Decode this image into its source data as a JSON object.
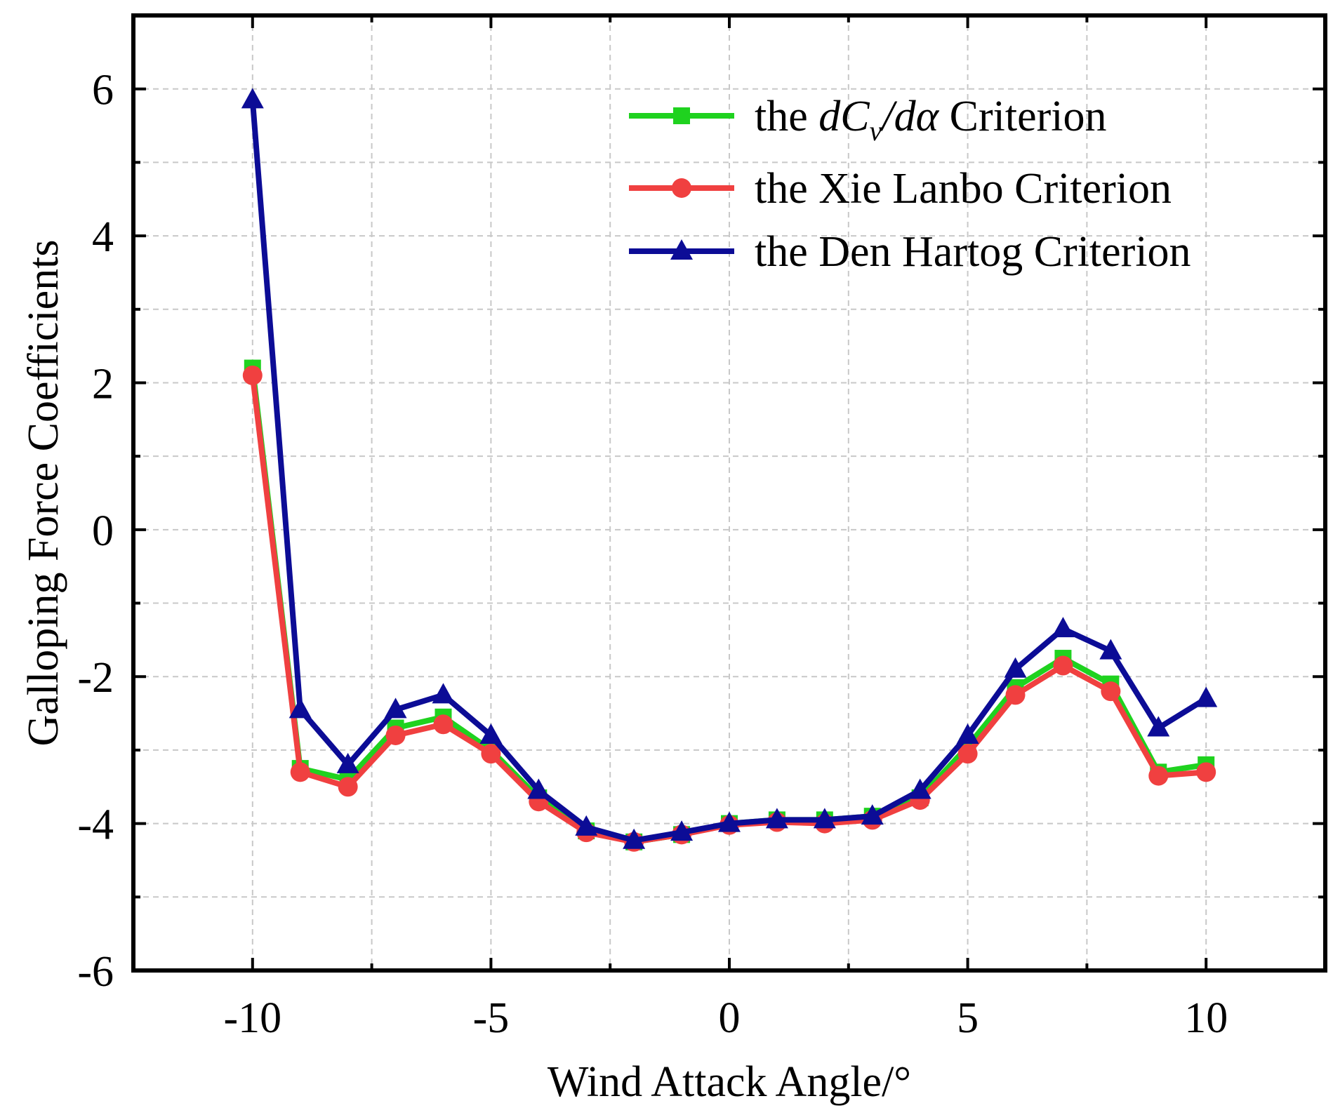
{
  "chart_data": {
    "type": "line",
    "title": "",
    "xlabel": "Wind Attack Angle/°",
    "ylabel": "Galloping Force Coefficients",
    "xlim": [
      -12.5,
      12.5
    ],
    "ylim": [
      -6,
      7
    ],
    "xticks": [
      -10,
      -5,
      0,
      5,
      10
    ],
    "yticks": [
      -6,
      -4,
      -2,
      0,
      2,
      4,
      6
    ],
    "xtick_labels": [
      "-10",
      "-5",
      "0",
      "5",
      "10"
    ],
    "ytick_labels": [
      "-6",
      "-4",
      "-2",
      "0",
      "2",
      "4",
      "6"
    ],
    "grid": true,
    "legend_position": "top-right",
    "x": [
      -10,
      -9,
      -8,
      -7,
      -6,
      -5,
      -4,
      -3,
      -2,
      -1,
      0,
      1,
      2,
      3,
      4,
      5,
      6,
      7,
      8,
      9,
      10
    ],
    "series": [
      {
        "name": "the dCv/dα Criterion",
        "legend_prefix": "the ",
        "legend_math_d1": "d",
        "legend_math_C": "C",
        "legend_math_sub": "v",
        "legend_math_slash": "/",
        "legend_math_d2": "d",
        "legend_math_alpha": "α",
        "legend_suffix": "Criterion",
        "color": "#1fd21f",
        "marker": "square",
        "values": [
          2.2,
          -3.25,
          -3.4,
          -2.7,
          -2.55,
          -3.0,
          -3.65,
          -4.1,
          -4.25,
          -4.15,
          -4.0,
          -3.95,
          -3.95,
          -3.9,
          -3.65,
          -2.95,
          -2.15,
          -1.75,
          -2.1,
          -3.3,
          -3.2
        ]
      },
      {
        "name": "the Xie Lanbo Criterion",
        "legend": "the Xie Lanbo Criterion",
        "color": "#f04040",
        "marker": "circle",
        "values": [
          2.1,
          -3.3,
          -3.5,
          -2.8,
          -2.65,
          -3.05,
          -3.7,
          -4.12,
          -4.25,
          -4.15,
          -4.02,
          -3.98,
          -4.0,
          -3.95,
          -3.68,
          -3.05,
          -2.25,
          -1.85,
          -2.2,
          -3.35,
          -3.3
        ]
      },
      {
        "name": "the Den Hartog Criterion",
        "legend": "the Den Hartog Criterion",
        "color": "#0c0c96",
        "marker": "triangle",
        "values": [
          5.85,
          -2.45,
          -3.2,
          -2.45,
          -2.25,
          -2.8,
          -3.55,
          -4.05,
          -4.23,
          -4.12,
          -4.0,
          -3.95,
          -3.95,
          -3.9,
          -3.55,
          -2.8,
          -1.9,
          -1.35,
          -1.65,
          -2.7,
          -2.3
        ]
      }
    ]
  }
}
